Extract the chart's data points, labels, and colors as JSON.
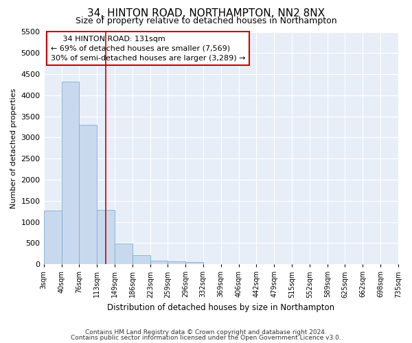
{
  "title": "34, HINTON ROAD, NORTHAMPTON, NN2 8NX",
  "subtitle": "Size of property relative to detached houses in Northampton",
  "xlabel": "Distribution of detached houses by size in Northampton",
  "ylabel": "Number of detached properties",
  "footer_line1": "Contains HM Land Registry data © Crown copyright and database right 2024.",
  "footer_line2": "Contains public sector information licensed under the Open Government Licence v3.0.",
  "annotation_title": "34 HINTON ROAD: 131sqm",
  "annotation_line1": "← 69% of detached houses are smaller (7,569)",
  "annotation_line2": "30% of semi-detached houses are larger (3,289) →",
  "property_size": 131,
  "bin_edges": [
    3,
    40,
    76,
    113,
    149,
    186,
    223,
    259,
    296,
    332,
    369,
    406,
    442,
    479,
    515,
    552,
    589,
    625,
    662,
    698,
    735
  ],
  "bar_values": [
    1270,
    4330,
    3300,
    1280,
    490,
    210,
    90,
    60,
    50,
    0,
    0,
    0,
    0,
    0,
    0,
    0,
    0,
    0,
    0,
    0
  ],
  "bar_color": "#c8d9ee",
  "bar_edgecolor": "#7aafd4",
  "vline_color": "#cc0000",
  "vline_x": 131,
  "annotation_box_color": "#cc0000",
  "plot_bg_color": "#e8eef8",
  "grid_color": "#ffffff",
  "ylim": [
    0,
    5500
  ],
  "yticks": [
    0,
    500,
    1000,
    1500,
    2000,
    2500,
    3000,
    3500,
    4000,
    4500,
    5000,
    5500
  ],
  "title_fontsize": 11,
  "subtitle_fontsize": 9,
  "ylabel_fontsize": 8,
  "xlabel_fontsize": 8.5,
  "ytick_fontsize": 8,
  "xtick_fontsize": 7,
  "annotation_fontsize": 8,
  "footer_fontsize": 6.5
}
